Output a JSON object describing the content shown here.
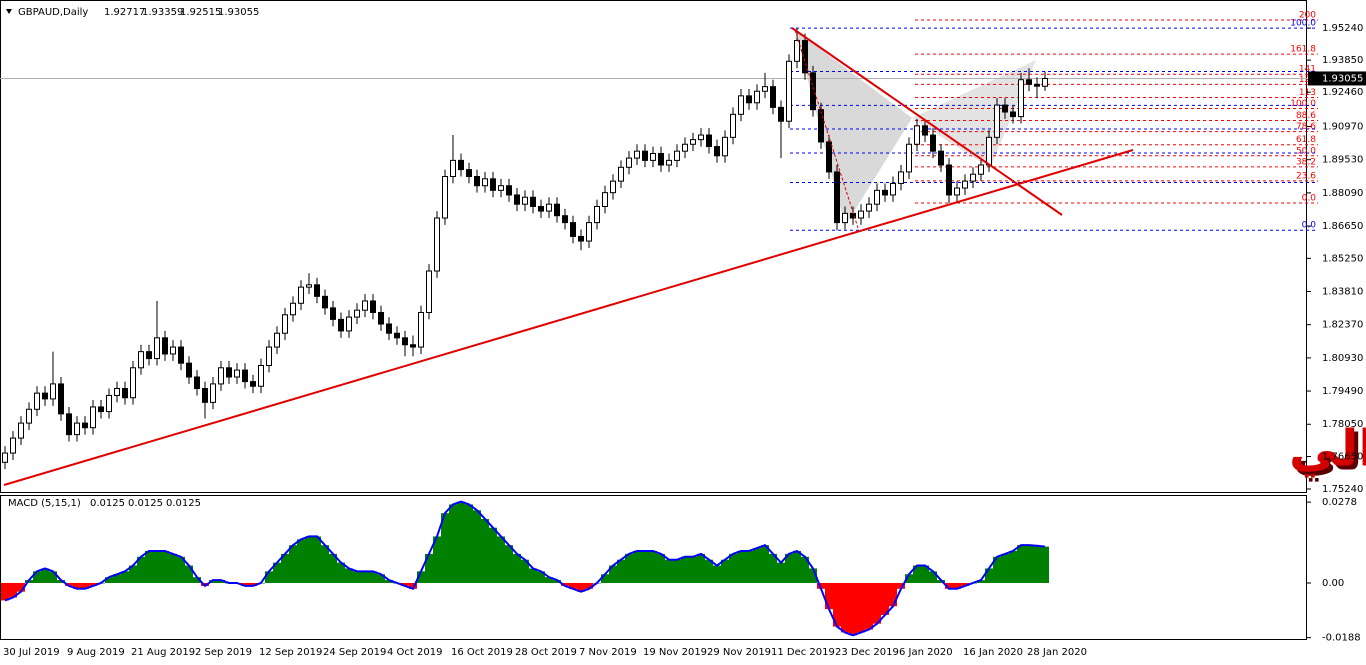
{
  "chart_data": {
    "type": "candlestick",
    "symbol": "GBPAUD,Daily",
    "categories": [
      "30 Jul 2019",
      null,
      null,
      null,
      null,
      null,
      null,
      null,
      "9 Aug 2019",
      null,
      null,
      null,
      null,
      null,
      null,
      null,
      "21 Aug 2019",
      null,
      null,
      null,
      null,
      null,
      null,
      null,
      "2 Sep 2019",
      null,
      null,
      null,
      null,
      null,
      null,
      null,
      "12 Sep 2019",
      null,
      null,
      null,
      null,
      null,
      null,
      null,
      "24 Sep 2019",
      null,
      null,
      null,
      null,
      null,
      null,
      null,
      "4 Oct 2019",
      null,
      null,
      null,
      null,
      null,
      null,
      null,
      "16 Oct 2019",
      null,
      null,
      null,
      null,
      null,
      null,
      null,
      "28 Oct 2019",
      null,
      null,
      null,
      null,
      null,
      null,
      null,
      "7 Nov 2019",
      null,
      null,
      null,
      null,
      null,
      null,
      null,
      "19 Nov 2019",
      null,
      null,
      null,
      null,
      null,
      null,
      null,
      "29 Nov 2019",
      null,
      null,
      null,
      null,
      null,
      null,
      null,
      "11 Dec 2019",
      null,
      null,
      null,
      null,
      null,
      null,
      null,
      "23 Dec 2019",
      null,
      null,
      null,
      null,
      null,
      null,
      null,
      "6 Jan 2020",
      null,
      null,
      null,
      null,
      null,
      null,
      null,
      "16 Jan 2020",
      null,
      null,
      null,
      null,
      null,
      null,
      null,
      "28 Jan 2020",
      null,
      null
    ],
    "open": [
      1.764,
      1.768,
      1.7745,
      1.781,
      1.787,
      1.794,
      1.7915,
      1.798,
      1.785,
      1.776,
      1.781,
      1.779,
      1.788,
      1.786,
      1.793,
      1.796,
      1.792,
      1.805,
      1.812,
      1.809,
      1.818,
      1.811,
      1.814,
      1.807,
      1.801,
      1.796,
      1.79,
      1.798,
      1.805,
      1.801,
      1.804,
      1.799,
      1.797,
      1.806,
      1.814,
      1.82,
      1.828,
      1.833,
      1.84,
      1.841,
      1.836,
      1.831,
      1.826,
      1.821,
      1.827,
      1.83,
      1.834,
      1.829,
      1.824,
      1.82,
      1.818,
      1.815,
      1.814,
      1.829,
      1.847,
      1.87,
      1.888,
      1.895,
      1.891,
      1.888,
      1.884,
      1.887,
      1.882,
      1.884,
      1.88,
      1.876,
      1.879,
      1.875,
      1.873,
      1.876,
      1.871,
      1.868,
      1.862,
      1.86,
      1.868,
      1.875,
      1.881,
      1.886,
      1.892,
      1.896,
      1.899,
      1.895,
      1.898,
      1.893,
      1.895,
      1.899,
      1.902,
      1.904,
      1.906,
      1.901,
      1.897,
      1.905,
      1.915,
      1.923,
      1.92,
      1.925,
      1.927,
      1.918,
      1.912,
      1.938,
      1.947,
      1.933,
      1.917,
      1.903,
      1.89,
      1.868,
      1.872,
      1.87,
      1.873,
      1.876,
      1.882,
      1.88,
      1.885,
      1.89,
      1.902,
      1.91,
      1.906,
      1.899,
      1.893,
      1.88,
      1.883,
      1.886,
      1.889,
      1.893,
      1.905,
      1.919,
      1.916,
      1.914,
      1.93,
      1.928,
      1.92717
    ],
    "high": [
      1.771,
      1.7775,
      1.784,
      1.79,
      1.797,
      1.797,
      1.812,
      1.801,
      1.788,
      1.784,
      1.784,
      1.791,
      1.791,
      1.796,
      1.799,
      1.799,
      1.808,
      1.815,
      1.815,
      1.834,
      1.821,
      1.817,
      1.817,
      1.81,
      1.804,
      1.799,
      1.801,
      1.808,
      1.808,
      1.807,
      1.807,
      1.802,
      1.809,
      1.817,
      1.823,
      1.831,
      1.836,
      1.843,
      1.846,
      1.844,
      1.839,
      1.834,
      1.829,
      1.83,
      1.833,
      1.837,
      1.837,
      1.832,
      1.827,
      1.823,
      1.821,
      1.819,
      1.832,
      1.85,
      1.873,
      1.891,
      1.906,
      1.898,
      1.894,
      1.891,
      1.89,
      1.89,
      1.887,
      1.887,
      1.883,
      1.882,
      1.882,
      1.878,
      1.879,
      1.879,
      1.874,
      1.871,
      1.865,
      1.871,
      1.878,
      1.884,
      1.889,
      1.895,
      1.899,
      1.902,
      1.902,
      1.901,
      1.901,
      1.898,
      1.902,
      1.905,
      1.907,
      1.909,
      1.909,
      1.904,
      1.908,
      1.918,
      1.926,
      1.926,
      1.928,
      1.933,
      1.93,
      1.921,
      1.941,
      1.9524,
      1.95,
      1.936,
      1.92,
      1.906,
      1.893,
      1.875,
      1.875,
      1.876,
      1.879,
      1.885,
      1.885,
      1.888,
      1.893,
      1.905,
      1.913,
      1.913,
      1.909,
      1.902,
      1.896,
      1.886,
      1.889,
      1.892,
      1.896,
      1.908,
      1.922,
      1.922,
      1.919,
      1.933,
      1.935,
      1.931,
      1.93359
    ],
    "low": [
      1.761,
      1.765,
      1.7715,
      1.778,
      1.784,
      1.7885,
      1.7885,
      1.782,
      1.773,
      1.773,
      1.776,
      1.776,
      1.783,
      1.783,
      1.79,
      1.789,
      1.789,
      1.802,
      1.806,
      1.806,
      1.808,
      1.808,
      1.804,
      1.798,
      1.793,
      1.783,
      1.787,
      1.795,
      1.798,
      1.798,
      1.796,
      1.794,
      1.794,
      1.803,
      1.811,
      1.817,
      1.825,
      1.83,
      1.837,
      1.833,
      1.828,
      1.823,
      1.818,
      1.818,
      1.824,
      1.827,
      1.826,
      1.821,
      1.817,
      1.815,
      1.81,
      1.81,
      1.811,
      1.826,
      1.844,
      1.867,
      1.885,
      1.888,
      1.885,
      1.881,
      1.881,
      1.879,
      1.879,
      1.877,
      1.873,
      1.873,
      1.872,
      1.87,
      1.87,
      1.868,
      1.865,
      1.859,
      1.856,
      1.857,
      1.865,
      1.872,
      1.878,
      1.883,
      1.889,
      1.893,
      1.892,
      1.892,
      1.89,
      1.89,
      1.892,
      1.896,
      1.899,
      1.901,
      1.898,
      1.894,
      1.894,
      1.902,
      1.912,
      1.917,
      1.917,
      1.922,
      1.915,
      1.896,
      1.909,
      1.935,
      1.93,
      1.914,
      1.9,
      1.887,
      1.8647,
      1.865,
      1.867,
      1.867,
      1.87,
      1.873,
      1.877,
      1.877,
      1.882,
      1.887,
      1.899,
      1.903,
      1.896,
      1.89,
      1.8765,
      1.877,
      1.88,
      1.883,
      1.886,
      1.89,
      1.902,
      1.913,
      1.911,
      1.911,
      1.925,
      1.922,
      1.92515
    ],
    "close": [
      1.768,
      1.7745,
      1.781,
      1.787,
      1.794,
      1.7915,
      1.798,
      1.785,
      1.776,
      1.781,
      1.779,
      1.788,
      1.786,
      1.793,
      1.796,
      1.792,
      1.805,
      1.812,
      1.809,
      1.818,
      1.811,
      1.814,
      1.807,
      1.801,
      1.796,
      1.79,
      1.798,
      1.805,
      1.801,
      1.804,
      1.799,
      1.797,
      1.806,
      1.814,
      1.82,
      1.828,
      1.833,
      1.84,
      1.841,
      1.836,
      1.831,
      1.826,
      1.821,
      1.827,
      1.83,
      1.834,
      1.829,
      1.824,
      1.82,
      1.818,
      1.815,
      1.814,
      1.829,
      1.847,
      1.87,
      1.888,
      1.895,
      1.891,
      1.888,
      1.884,
      1.887,
      1.882,
      1.884,
      1.88,
      1.876,
      1.879,
      1.875,
      1.873,
      1.876,
      1.871,
      1.868,
      1.862,
      1.86,
      1.868,
      1.875,
      1.881,
      1.886,
      1.892,
      1.896,
      1.899,
      1.895,
      1.898,
      1.893,
      1.895,
      1.899,
      1.902,
      1.904,
      1.906,
      1.901,
      1.897,
      1.905,
      1.915,
      1.923,
      1.92,
      1.925,
      1.927,
      1.918,
      1.912,
      1.938,
      1.947,
      1.933,
      1.917,
      1.903,
      1.89,
      1.868,
      1.872,
      1.87,
      1.873,
      1.876,
      1.882,
      1.88,
      1.885,
      1.89,
      1.902,
      1.91,
      1.906,
      1.899,
      1.893,
      1.88,
      1.883,
      1.886,
      1.889,
      1.893,
      1.905,
      1.919,
      1.916,
      1.914,
      1.93,
      1.928,
      1.9272,
      1.93055
    ],
    "up_color": "#ffffff",
    "down_color": "#000000",
    "ylim": [
      1.7511,
      1.9646
    ],
    "yticks": [
      {
        "value": 1.9524,
        "label": "1.95240"
      },
      {
        "value": 1.9385,
        "label": "1.93850"
      },
      {
        "value": 1.9246,
        "label": "1.92460"
      },
      {
        "value": 1.9097,
        "label": "1.90970"
      },
      {
        "value": 1.8953,
        "label": "1.89530"
      },
      {
        "value": 1.8809,
        "label": "1.88090"
      },
      {
        "value": 1.8665,
        "label": "1.86650"
      },
      {
        "value": 1.8525,
        "label": "1.85250"
      },
      {
        "value": 1.8381,
        "label": "1.83810"
      },
      {
        "value": 1.8237,
        "label": "1.82370"
      },
      {
        "value": 1.8093,
        "label": "1.80930"
      },
      {
        "value": 1.7949,
        "label": "1.79490"
      },
      {
        "value": 1.7805,
        "label": "1.78050"
      },
      {
        "value": 1.7665,
        "label": "1.76650"
      },
      {
        "value": 1.7524,
        "label": "1.75240"
      }
    ],
    "fib_levels": [
      {
        "label": "200",
        "price": 1.9559,
        "color": "#ff0000"
      },
      {
        "label": "161.8",
        "price": 1.9411,
        "color": "#ff0000"
      },
      {
        "label": "141",
        "price": 1.9324,
        "color": "#ff0000"
      },
      {
        "label": "127",
        "price": 1.928,
        "color": "#ff0000"
      },
      {
        "label": "113",
        "price": 1.9223,
        "color": "#ff0000"
      },
      {
        "label": "100.0",
        "price": 1.9175,
        "color": "#ff0000"
      },
      {
        "label": "88.6",
        "price": 1.9123,
        "color": "#ff0000"
      },
      {
        "label": "78.6",
        "price": 1.9075,
        "color": "#ff0000"
      },
      {
        "label": "61.8",
        "price": 1.9018,
        "color": "#ff0000"
      },
      {
        "label": "50.0",
        "price": 1.897,
        "color": "#ff0000"
      },
      {
        "label": "38.2",
        "price": 1.8922,
        "color": "#ff0000"
      },
      {
        "label": "23.6",
        "price": 1.8861,
        "color": "#ff0000"
      },
      {
        "label": "0.0",
        "price": 1.8765,
        "color": "#ff0000"
      }
    ],
    "fib_levels_2": [
      {
        "label": "100.0",
        "price": 1.9524,
        "color": "#0000ff"
      },
      {
        "label": null,
        "price": 1.9336,
        "color": "#0000ff"
      },
      {
        "label": null,
        "price": 1.9189,
        "color": "#0000ff"
      },
      {
        "label": null,
        "price": 1.9086,
        "color": "#0000ff"
      },
      {
        "label": null,
        "price": 1.8982,
        "color": "#0000ff"
      },
      {
        "label": null,
        "price": 1.8854,
        "color": "#0000ff"
      },
      {
        "label": "0.0",
        "price": 1.8647,
        "color": "#0000ff"
      }
    ],
    "watermark": "باوند أسترالي",
    "indicator": {
      "name": "MACD (5,15,1)",
      "values": [
        -0.006,
        -0.005,
        -0.003,
        0.001,
        0.004,
        0.005,
        0.004,
        0.001,
        -0.001,
        -0.002,
        -0.002,
        -0.001,
        0.0,
        0.002,
        0.003,
        0.004,
        0.006,
        0.009,
        0.011,
        0.011,
        0.011,
        0.01,
        0.009,
        0.006,
        0.002,
        -0.001,
        0.001,
        0.001,
        0.0,
        0.0,
        -0.001,
        -0.001,
        0.0,
        0.004,
        0.007,
        0.01,
        0.013,
        0.015,
        0.016,
        0.016,
        0.013,
        0.01,
        0.007,
        0.005,
        0.004,
        0.004,
        0.004,
        0.003,
        0.001,
        0.0,
        -0.001,
        -0.002,
        0.004,
        0.01,
        0.016,
        0.024,
        0.027,
        0.028,
        0.027,
        0.025,
        0.022,
        0.019,
        0.016,
        0.013,
        0.01,
        0.008,
        0.005,
        0.004,
        0.002,
        0.001,
        -0.001,
        -0.002,
        -0.003,
        -0.002,
        0.0,
        0.003,
        0.006,
        0.008,
        0.01,
        0.011,
        0.011,
        0.011,
        0.01,
        0.008,
        0.008,
        0.009,
        0.009,
        0.01,
        0.008,
        0.006,
        0.008,
        0.01,
        0.011,
        0.011,
        0.012,
        0.013,
        0.01,
        0.007,
        0.01,
        0.011,
        0.009,
        0.005,
        -0.002,
        -0.009,
        -0.015,
        -0.017,
        -0.018,
        -0.017,
        -0.016,
        -0.014,
        -0.011,
        -0.008,
        -0.002,
        0.003,
        0.006,
        0.006,
        0.004,
        0.001,
        -0.002,
        -0.002,
        -0.001,
        0.0,
        0.001,
        0.005,
        0.009,
        0.01,
        0.011,
        0.013,
        0.013,
        0.0128,
        0.0125
      ],
      "positive_color": "#008000",
      "negative_color": "#ff0000",
      "line_color": "#0000ff",
      "ylim": [
        -0.0196,
        0.0299
      ],
      "yticks": [
        0.0278,
        {
          "value": 0,
          "label": "0.00"
        },
        -0.0188
      ]
    }
  }
}
